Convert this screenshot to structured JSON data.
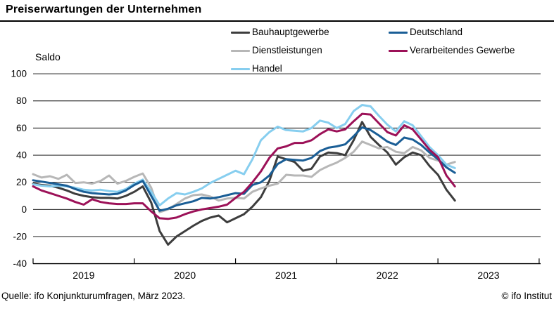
{
  "footer": {
    "source": "Quelle: ifo Konjunkturumfragen, März 2023.",
    "copyright": "© ifo Institut"
  },
  "chart_data": {
    "type": "line",
    "title": "Preiserwartungen der Unternehmen",
    "ylabel": "Saldo",
    "xlabel": "",
    "x_unit": "month",
    "x_start": "2019-01",
    "x_end": "2023-03",
    "x_tick_years": [
      "2019",
      "2020",
      "2021",
      "2022",
      "2023"
    ],
    "ylim": [
      -40,
      100
    ],
    "y_ticks": [
      100,
      80,
      60,
      40,
      20,
      0,
      -20,
      -40
    ],
    "grid": "horizontal-black",
    "legend_position": "top",
    "series": [
      {
        "name": "Bauhauptgewerbe",
        "color": "#3d3d3d",
        "values": [
          19,
          18,
          17.5,
          16,
          14,
          11.5,
          10,
          9,
          8.5,
          8.5,
          8,
          10,
          13,
          17,
          5,
          -16,
          -26,
          -20,
          -16,
          -12,
          -8.5,
          -6,
          -4.5,
          -9.5,
          -6.5,
          -3.5,
          2,
          9,
          21,
          39,
          37,
          35,
          28.5,
          30,
          39,
          42,
          41.5,
          40,
          51,
          64.5,
          53.5,
          47.5,
          42,
          33,
          38.5,
          42,
          40,
          32,
          25.5,
          14.5,
          6.5
        ]
      },
      {
        "name": "Dienstleistungen",
        "color": "#b7b7b7",
        "values": [
          26,
          23.5,
          24.5,
          22.5,
          25.5,
          19.5,
          20,
          19,
          21,
          25,
          19,
          21,
          24,
          26.5,
          16,
          -2,
          0,
          4,
          8,
          10.5,
          11,
          9.5,
          6.5,
          8,
          8.5,
          8,
          13,
          15.5,
          17.5,
          19,
          25.5,
          25,
          25,
          24,
          29,
          32,
          34.5,
          38,
          42.5,
          50,
          47.5,
          45,
          46,
          42.5,
          41.5,
          46,
          43.5,
          38,
          36,
          33,
          35
        ]
      },
      {
        "name": "Handel",
        "color": "#87ceef",
        "values": [
          18.5,
          17.5,
          17,
          17.5,
          17,
          16,
          14.5,
          14,
          14.5,
          13.5,
          13,
          15,
          19,
          22,
          13,
          3,
          8,
          12,
          11,
          13,
          15.5,
          19.5,
          22.5,
          25.5,
          28.5,
          26,
          37,
          51,
          57,
          61,
          58.5,
          58,
          57.5,
          60,
          65.5,
          64,
          60,
          63,
          72.5,
          77,
          76,
          69,
          62.5,
          57.5,
          65,
          62,
          54,
          46,
          40,
          33,
          30.5
        ]
      },
      {
        "name": "Deutschland",
        "color": "#1a5e96",
        "values": [
          21.5,
          20.5,
          19.5,
          18.5,
          17.5,
          15,
          13,
          12,
          11.5,
          11,
          11.5,
          14,
          18,
          21,
          10,
          -1,
          0.5,
          3,
          4.5,
          6,
          8.5,
          8,
          9,
          10.5,
          12,
          11.5,
          18,
          20,
          25,
          33.5,
          37,
          36.5,
          36,
          38,
          43,
          45.5,
          46.5,
          48,
          54,
          60.5,
          58.5,
          54.5,
          50,
          47.5,
          53,
          51.5,
          47.5,
          42,
          37,
          31,
          27
        ]
      },
      {
        "name": "Verarbeitendes Gewerbe",
        "color": "#9c1158",
        "values": [
          17,
          14,
          12,
          10,
          8,
          5.5,
          3.5,
          7.5,
          5.5,
          4.5,
          4,
          4,
          4.5,
          4.5,
          -1.5,
          -6.5,
          -7,
          -6,
          -3.5,
          -1.5,
          0,
          1,
          2,
          3.5,
          8.5,
          13,
          20,
          28,
          38,
          45,
          46.5,
          49,
          49,
          51,
          55.5,
          59,
          57.5,
          59,
          65,
          70.5,
          70,
          63.5,
          57,
          54.5,
          62,
          59,
          51.5,
          44,
          38.5,
          25,
          17
        ]
      }
    ]
  }
}
